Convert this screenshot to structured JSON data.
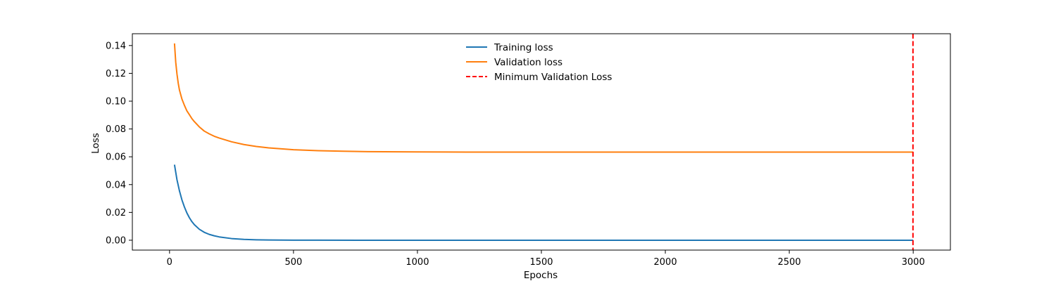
{
  "chart_data": {
    "type": "line",
    "xlabel": "Epochs",
    "ylabel": "Loss",
    "xlim": [
      -150,
      3150
    ],
    "ylim": [
      -0.0071,
      0.1485
    ],
    "x_ticks": [
      0,
      500,
      1000,
      1500,
      2000,
      2500,
      3000
    ],
    "y_ticks": [
      0.0,
      0.02,
      0.04,
      0.06,
      0.08,
      0.1,
      0.12,
      0.14
    ],
    "y_tick_labels": [
      "0.00",
      "0.02",
      "0.04",
      "0.06",
      "0.08",
      "0.10",
      "0.12",
      "0.14"
    ],
    "legend_position": "top-center",
    "grid": false,
    "series": [
      {
        "name": "Training loss",
        "color": "#1f77b4",
        "style": "solid",
        "x": [
          20,
          30,
          40,
          50,
          60,
          70,
          80,
          90,
          100,
          120,
          140,
          160,
          180,
          200,
          250,
          300,
          350,
          400,
          500,
          600,
          800,
          1000,
          1500,
          2000,
          2500,
          3000
        ],
        "y": [
          0.0543,
          0.0435,
          0.0355,
          0.029,
          0.0239,
          0.0196,
          0.0162,
          0.0134,
          0.0112,
          0.0079,
          0.0057,
          0.0042,
          0.0032,
          0.0024,
          0.0012,
          0.0006,
          0.0003,
          0.00018,
          6e-05,
          2e-05,
          0.0,
          0.0,
          0.0,
          0.0,
          0.0,
          0.0
        ]
      },
      {
        "name": "Validation loss",
        "color": "#ff7f0e",
        "style": "solid",
        "x": [
          20,
          25,
          30,
          35,
          40,
          50,
          60,
          70,
          80,
          90,
          100,
          120,
          140,
          160,
          180,
          200,
          250,
          300,
          350,
          400,
          500,
          600,
          700,
          800,
          1000,
          1200,
          1500,
          2000,
          2500,
          3000
        ],
        "y": [
          0.1415,
          0.128,
          0.1195,
          0.113,
          0.108,
          0.1015,
          0.097,
          0.093,
          0.0903,
          0.0875,
          0.0853,
          0.0815,
          0.0785,
          0.0765,
          0.0748,
          0.0735,
          0.0708,
          0.0688,
          0.0674,
          0.0664,
          0.0651,
          0.0644,
          0.064,
          0.0637,
          0.0635,
          0.0634,
          0.0634,
          0.0634,
          0.0634,
          0.0634
        ]
      }
    ],
    "reference_lines": [
      {
        "name": "Minimum Validation Loss",
        "orientation": "vertical",
        "x": 2999,
        "color": "#ff0000",
        "style": "dashed"
      }
    ]
  }
}
